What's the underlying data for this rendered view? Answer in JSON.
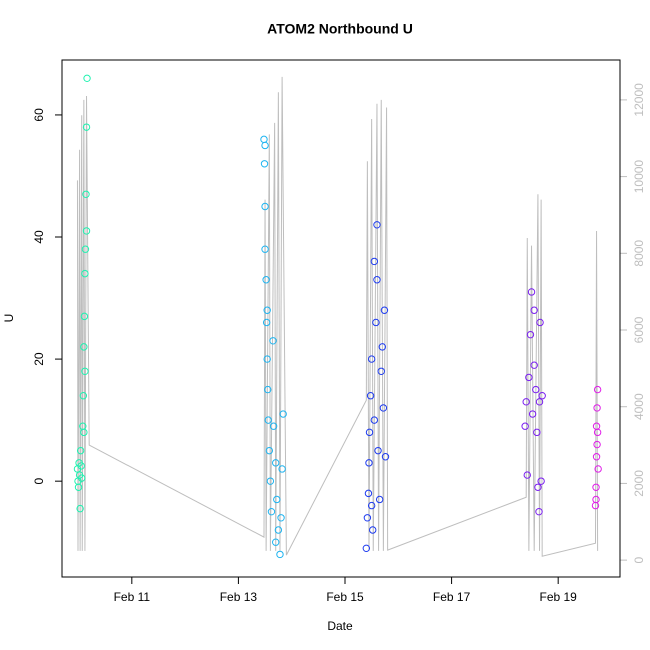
{
  "chart_data": {
    "type": "scatter",
    "title": "ATOM2 Northbound U",
    "x_label": "Date",
    "y_label": "U",
    "xlim": [
      9.69,
      20.16
    ],
    "xticks": [
      {
        "value": 11,
        "label": "Feb 11"
      },
      {
        "value": 13,
        "label": "Feb 13"
      },
      {
        "value": 15,
        "label": "Feb 15"
      },
      {
        "value": 17,
        "label": "Feb 17"
      },
      {
        "value": 19,
        "label": "Feb 19"
      }
    ],
    "ylim": [
      -15.7,
      69
    ],
    "yticks": [
      0,
      20,
      40,
      60
    ],
    "y2lim": [
      -440,
      13040
    ],
    "y2ticks": [
      0,
      2000,
      4000,
      6000,
      8000,
      10000,
      12000
    ],
    "y2_color": "#bebebe",
    "series": [
      {
        "type": "line",
        "axis": "y2",
        "color": "#bebebe",
        "x": [
          9.98,
          9.99,
          10.02,
          10.03,
          10.06,
          10.07,
          10.1,
          10.12,
          10.15,
          10.2,
          13.48,
          13.5,
          13.52,
          13.58,
          13.6,
          13.68,
          13.7,
          13.75,
          13.78,
          13.82,
          13.9,
          15.4,
          15.42,
          15.45,
          15.5,
          15.53,
          15.6,
          15.63,
          15.68,
          15.72,
          15.78,
          15.8,
          18.4,
          18.42,
          18.45,
          18.5,
          18.55,
          18.62,
          18.65,
          18.68,
          18.7,
          19.7,
          19.72,
          19.74
        ],
        "values": [
          9900,
          240,
          10700,
          240,
          11600,
          240,
          12000,
          240,
          12100,
          3000,
          600,
          9400,
          240,
          11100,
          240,
          11400,
          240,
          12200,
          240,
          12600,
          130,
          4170,
          10400,
          240,
          11500,
          240,
          11900,
          240,
          12000,
          240,
          11800,
          260,
          1640,
          8400,
          240,
          8200,
          240,
          9540,
          240,
          9400,
          100,
          440,
          8580,
          240
        ]
      },
      {
        "type": "scatter",
        "color": "#1ef2b0",
        "x": [
          9.98,
          9.99,
          10.0,
          10.01,
          10.02,
          10.03,
          10.04,
          10.05,
          10.06,
          10.08,
          10.09,
          10.1,
          10.1,
          10.11,
          10.12,
          10.13,
          10.14,
          10.15,
          10.16,
          10.12,
          10.15
        ],
        "values": [
          2,
          0,
          -1,
          3,
          1,
          -4.5,
          5,
          2.5,
          0.5,
          9,
          14,
          22,
          8,
          27,
          34,
          38,
          47,
          58,
          66,
          18,
          41
        ]
      },
      {
        "type": "scatter",
        "color": "#1eb4f0",
        "x": [
          13.48,
          13.49,
          13.5,
          13.5,
          13.52,
          13.53,
          13.54,
          13.55,
          13.56,
          13.58,
          13.6,
          13.62,
          13.65,
          13.66,
          13.7,
          13.72,
          13.75,
          13.78,
          13.8,
          13.82,
          13.84,
          13.5,
          13.54,
          13.7
        ],
        "values": [
          56,
          52,
          45,
          38,
          33,
          26,
          20,
          15,
          10,
          5,
          0,
          -5,
          23,
          9,
          3,
          -3,
          -8,
          -12,
          -6,
          2,
          11,
          55,
          28,
          -10
        ]
      },
      {
        "type": "scatter",
        "color": "#1e3cf0",
        "x": [
          15.4,
          15.42,
          15.44,
          15.45,
          15.46,
          15.48,
          15.5,
          15.52,
          15.55,
          15.58,
          15.6,
          15.6,
          15.62,
          15.65,
          15.68,
          15.7,
          15.72,
          15.74,
          15.76,
          15.5,
          15.55
        ],
        "values": [
          -11,
          -6,
          -2,
          3,
          8,
          14,
          20,
          -8,
          10,
          26,
          33,
          42,
          5,
          -3,
          18,
          22,
          12,
          28,
          4,
          -4,
          36
        ]
      },
      {
        "type": "scatter",
        "color": "#7a1ef0",
        "x": [
          18.38,
          18.4,
          18.42,
          18.45,
          18.48,
          18.5,
          18.52,
          18.55,
          18.58,
          18.6,
          18.62,
          18.64,
          18.65,
          18.66,
          18.68,
          18.7,
          18.55
        ],
        "values": [
          9,
          13,
          1,
          17,
          24,
          31,
          11,
          19,
          15,
          8,
          -1,
          -5,
          13,
          26,
          0,
          14,
          28
        ]
      },
      {
        "type": "scatter",
        "color": "#e01ee8",
        "x": [
          19.7,
          19.71,
          19.72,
          19.72,
          19.73,
          19.74,
          19.74,
          19.75,
          19.73,
          19.71
        ],
        "values": [
          -4,
          -1,
          4,
          9,
          12,
          15,
          8,
          2,
          6,
          -3
        ]
      }
    ]
  }
}
